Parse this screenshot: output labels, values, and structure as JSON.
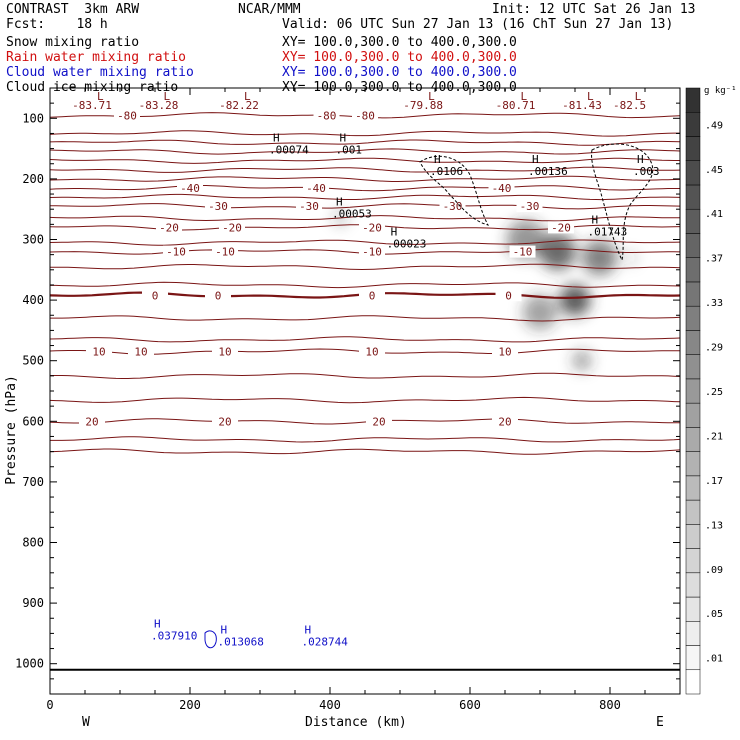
{
  "header": {
    "model": "CONTRAST  3km ARW",
    "center": "NCAR/MMM",
    "init": "Init: 12 UTC Sat 26 Jan 13",
    "fcst": "Fcst:    18 h",
    "valid": "Valid: 06 UTC Sun 27 Jan 13 (16 ChT Sun 27 Jan 13)"
  },
  "fields": [
    {
      "label": "Snow mixing ratio",
      "xy": "XY= 100.0,300.0 to 400.0,300.0",
      "color": "#000000"
    },
    {
      "label": "Rain water mixing ratio",
      "xy": "XY= 100.0,300.0 to 400.0,300.0",
      "color": "#d11010"
    },
    {
      "label": "Cloud water mixing ratio",
      "xy": "XY= 100.0,300.0 to 400.0,300.0",
      "color": "#1010c8"
    },
    {
      "label": "Cloud ice mixing ratio",
      "xy": "XY= 100.0,300.0 to 400.0,300.0",
      "color": "#000000"
    }
  ],
  "chart_data": {
    "type": "heatmap",
    "xlabel": "Distance (km)",
    "ylabel": "Pressure (hPa)",
    "xlim": [
      0,
      900
    ],
    "ylim": [
      1050,
      50
    ],
    "xticks": [
      0,
      200,
      400,
      600,
      800
    ],
    "yticks": [
      100,
      200,
      300,
      400,
      500,
      600,
      700,
      800,
      900,
      1000
    ],
    "x_end_labels": {
      "left": "W",
      "right": "E"
    },
    "colorbar": {
      "unit": "g kg⁻¹",
      "labels": [
        ".49",
        ".45",
        ".41",
        ".37",
        ".33",
        ".29",
        ".25",
        ".21",
        ".17",
        ".13",
        ".09",
        ".05",
        ".01"
      ]
    },
    "snow_blobs": [
      {
        "x": 415,
        "p": 265,
        "sx": 10,
        "sp": 45,
        "v": 0.22
      },
      {
        "x": 680,
        "p": 300,
        "sx": 28,
        "sp": 70,
        "v": 0.35
      },
      {
        "x": 725,
        "p": 320,
        "sx": 26,
        "sp": 110,
        "v": 0.5
      },
      {
        "x": 750,
        "p": 400,
        "sx": 22,
        "sp": 90,
        "v": 0.55
      },
      {
        "x": 785,
        "p": 330,
        "sx": 25,
        "sp": 90,
        "v": 0.42
      },
      {
        "x": 760,
        "p": 500,
        "sx": 14,
        "sp": 45,
        "v": 0.3
      },
      {
        "x": 700,
        "p": 420,
        "sx": 25,
        "sp": 60,
        "v": 0.3
      },
      {
        "x": 830,
        "p": 330,
        "sx": 10,
        "sp": 40,
        "v": 0.12
      }
    ],
    "temperature_isotherms": [
      {
        "T": -80,
        "p": 95,
        "labels": [
          {
            "x": 110,
            "t": "-80"
          },
          {
            "x": 395,
            "t": "-80"
          },
          {
            "x": 450,
            "t": "-80"
          }
        ]
      },
      {
        "T": null,
        "p": 125,
        "labels": []
      },
      {
        "T": null,
        "p": 140,
        "labels": []
      },
      {
        "T": null,
        "p": 155,
        "labels": []
      },
      {
        "T": null,
        "p": 170,
        "labels": []
      },
      {
        "T": null,
        "p": 185,
        "labels": []
      },
      {
        "T": null,
        "p": 200,
        "labels": []
      },
      {
        "T": -40,
        "p": 215,
        "labels": [
          {
            "x": 200,
            "t": "-40"
          },
          {
            "x": 380,
            "t": "-40"
          },
          {
            "x": 645,
            "t": "-40"
          }
        ]
      },
      {
        "T": null,
        "p": 230,
        "labels": []
      },
      {
        "T": -30,
        "p": 245,
        "labels": [
          {
            "x": 240,
            "t": "-30"
          },
          {
            "x": 370,
            "t": "-30"
          },
          {
            "x": 575,
            "t": "-30"
          },
          {
            "x": 685,
            "t": "-30"
          }
        ]
      },
      {
        "T": null,
        "p": 265,
        "labels": []
      },
      {
        "T": -20,
        "p": 280,
        "labels": [
          {
            "x": 170,
            "t": "-20"
          },
          {
            "x": 260,
            "t": "-20"
          },
          {
            "x": 460,
            "t": "-20"
          },
          {
            "x": 730,
            "t": "-20"
          }
        ]
      },
      {
        "T": null,
        "p": 305,
        "labels": []
      },
      {
        "T": -10,
        "p": 320,
        "labels": [
          {
            "x": 180,
            "t": "-10"
          },
          {
            "x": 250,
            "t": "-10"
          },
          {
            "x": 460,
            "t": "-10"
          },
          {
            "x": 675,
            "t": "-10"
          }
        ]
      },
      {
        "T": null,
        "p": 345,
        "labels": []
      },
      {
        "T": null,
        "p": 375,
        "labels": []
      },
      {
        "T": 0,
        "p": 392,
        "labels": [
          {
            "x": 150,
            "t": "0"
          },
          {
            "x": 240,
            "t": "0"
          },
          {
            "x": 460,
            "t": "0"
          },
          {
            "x": 655,
            "t": "0"
          }
        ]
      },
      {
        "T": null,
        "p": 430,
        "labels": []
      },
      {
        "T": null,
        "p": 465,
        "labels": []
      },
      {
        "T": 10,
        "p": 485,
        "labels": [
          {
            "x": 70,
            "t": "10"
          },
          {
            "x": 130,
            "t": "10"
          },
          {
            "x": 250,
            "t": "10"
          },
          {
            "x": 460,
            "t": "10"
          },
          {
            "x": 650,
            "t": "10"
          }
        ]
      },
      {
        "T": null,
        "p": 525,
        "labels": []
      },
      {
        "T": null,
        "p": 565,
        "labels": []
      },
      {
        "T": 20,
        "p": 600,
        "labels": [
          {
            "x": 60,
            "t": "20"
          },
          {
            "x": 250,
            "t": "20"
          },
          {
            "x": 470,
            "t": "20"
          },
          {
            "x": 650,
            "t": "20"
          }
        ]
      },
      {
        "T": null,
        "p": 630,
        "labels": []
      },
      {
        "T": null,
        "p": 650,
        "labels": []
      }
    ],
    "top_minima": [
      {
        "x": 60,
        "t": "-83.71"
      },
      {
        "x": 155,
        "t": "-83.28"
      },
      {
        "x": 270,
        "t": "-82.22"
      },
      {
        "x": 533,
        "t": "-79.88"
      },
      {
        "x": 665,
        "t": "-80.71"
      },
      {
        "x": 760,
        "t": "-81.43"
      },
      {
        "x": 828,
        "t": "-82.5"
      }
    ],
    "snow_maxima": [
      {
        "x": 330,
        "t": ".00074"
      },
      {
        "x": 425,
        "t": ".001"
      },
      {
        "x": 560,
        "t": ".0106"
      },
      {
        "x": 700,
        "t": ".00136"
      },
      {
        "x": 850,
        "t": ".003"
      },
      {
        "x": 420,
        "t": ".00053"
      },
      {
        "x": 498,
        "t": ".00023"
      },
      {
        "x": 785,
        "t": ".01743"
      }
    ],
    "cloud_water_maxima": [
      {
        "x": 180,
        "t": ".037910"
      },
      {
        "x": 275,
        "t": ".013068"
      },
      {
        "x": 395,
        "t": ".028744"
      }
    ]
  }
}
